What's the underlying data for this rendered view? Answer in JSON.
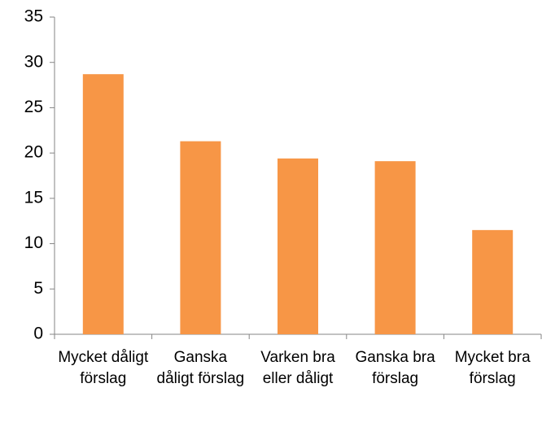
{
  "chart_data": {
    "type": "bar",
    "categories": [
      "Mycket dåligt förslag",
      "Ganska dåligt förslag",
      "Varken bra eller dåligt",
      "Ganska bra förslag",
      "Mycket bra förslag"
    ],
    "values": [
      28.7,
      21.3,
      19.4,
      19.1,
      11.5
    ],
    "color": "#f79646",
    "ylim": [
      0,
      35
    ],
    "yticks": [
      0,
      5,
      10,
      15,
      20,
      25,
      30,
      35
    ],
    "grid": false
  }
}
